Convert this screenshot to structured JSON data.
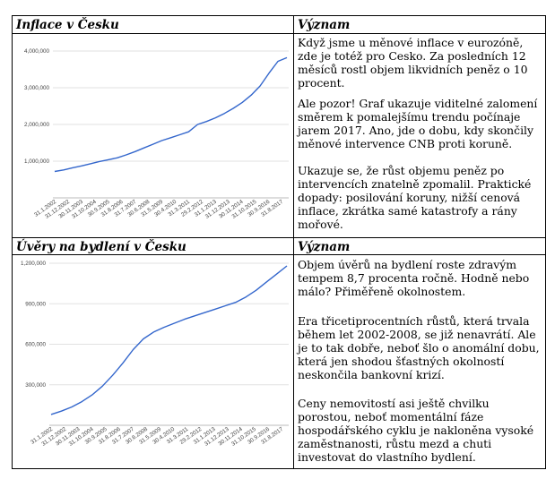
{
  "sections": [
    {
      "heading": "Inflace v Česku",
      "meaning_heading": "Význam",
      "paragraphs": [
        "Když jsme u měnové inflace v eurozóně, zde je totéž pro Cesko. Za posledních 12 měsíců rostl objem likvidních peněz o 10 procent.",
        "Ale pozor! Graf ukazuje viditelné zalomení směrem k pomalejšímu trendu počínaje jarem 2017. Ano, jde o dobu, kdy skončily měnové intervence CNB proti koruně.",
        "Ukazuje se, že růst objemu peněz po intervencích znatelně zpomalil. Praktické dopady: posilování koruny, nižší cenová inflace, zkrátka samé katastrofy a rány mořové."
      ]
    },
    {
      "heading": "Úvěry na bydlení v Česku",
      "meaning_heading": "Význam",
      "paragraphs": [
        "Objem úvěrů na bydlení roste zdravým tempem 8,7 procenta ročně. Hodně nebo málo? Přiměřeně okolnostem.",
        "Era třicetiprocentních růstů, která trvala během let 2002-2008, se již nenavrátí. Ale je to tak dobře, neboť šlo o anomální dobu, která jen shodou šťastných okolností neskončila bankovní krizí.",
        "Ceny nemovitostí asi ještě chvilku porostou, neboť momentální fáze hospodářského cyklu je nakloněna vysoké zaměstnanosti, růstu mezd a chuti investovat do vlastního bydlení."
      ]
    }
  ],
  "chart_data": [
    {
      "type": "line",
      "title": "",
      "ylim": [
        0,
        4000000
      ],
      "yticks": [
        1000000,
        2000000,
        3000000,
        4000000
      ],
      "ytick_labels": [
        "1,000,000",
        "2,000,000",
        "3,000,000",
        "4,000,000"
      ],
      "xtick_labels": [
        "31.1.2002",
        "31.12.2002",
        "30.11.2003",
        "31.10.2004",
        "30.9.2005",
        "31.8.2006",
        "31.7.2007",
        "30.6.2008",
        "31.5.2009",
        "30.4.2010",
        "31.3.2011",
        "29.2.2012",
        "31.1.2013",
        "31.12.2013",
        "30.11.2014",
        "31.10.2015",
        "30.9.2016",
        "31.8.2017"
      ],
      "grid": true,
      "color": "#3366cc",
      "series": [
        {
          "values": [
            720000,
            760000,
            820000,
            870000,
            930000,
            990000,
            1040000,
            1090000,
            1170000,
            1260000,
            1360000,
            1460000,
            1560000,
            1640000,
            1720000,
            1800000,
            2000000,
            2080000,
            2180000,
            2300000,
            2440000,
            2600000,
            2800000,
            3050000,
            3400000,
            3720000,
            3820000
          ]
        }
      ]
    },
    {
      "type": "line",
      "title": "",
      "ylim": [
        0,
        1200000
      ],
      "yticks": [
        300000,
        600000,
        900000,
        1200000
      ],
      "ytick_labels": [
        "300,000",
        "600,000",
        "900,000",
        "1,200,000"
      ],
      "xtick_labels": [
        "31.1.2002",
        "31.12.2002",
        "30.11.2003",
        "31.10.2004",
        "30.9.2005",
        "31.8.2006",
        "31.7.2007",
        "30.6.2008",
        "31.5.2009",
        "30.4.2010",
        "31.3.2011",
        "29.2.2012",
        "31.1.2013",
        "31.12.2013",
        "30.11.2014",
        "31.10.2015",
        "30.9.2016",
        "31.8.2017"
      ],
      "grid": true,
      "color": "#3366cc",
      "series": [
        {
          "values": [
            80000,
            105000,
            135000,
            175000,
            225000,
            290000,
            370000,
            460000,
            560000,
            640000,
            690000,
            725000,
            755000,
            785000,
            810000,
            835000,
            860000,
            885000,
            910000,
            950000,
            1000000,
            1060000,
            1120000,
            1180000
          ]
        }
      ]
    }
  ]
}
